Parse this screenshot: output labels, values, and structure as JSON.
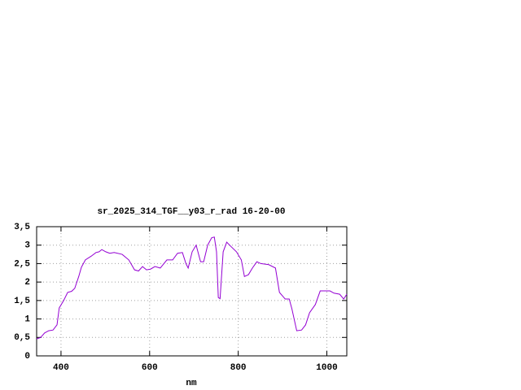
{
  "chart_data": {
    "type": "line",
    "title": "sr_2025_314_TGF__y03_r_rad 16-20-00",
    "x_label": "nm",
    "color": "#9400d3",
    "grid": true,
    "xlim": [
      345,
      1045
    ],
    "ylim": [
      0,
      3.5
    ],
    "xticks": [
      400,
      600,
      800,
      1000
    ],
    "yticks": [
      0,
      {
        "value": 0.5,
        "label": "0,5"
      },
      1,
      {
        "value": 1.5,
        "label": "1,5"
      },
      2,
      {
        "value": 2.5,
        "label": "2,5"
      },
      3,
      {
        "value": 3.5,
        "label": "3,5"
      }
    ],
    "x": [
      345,
      354,
      363,
      372,
      382,
      391,
      396,
      406,
      415,
      424,
      431,
      440,
      446,
      455,
      468,
      479,
      486,
      492,
      501,
      510,
      520,
      538,
      553,
      566,
      575,
      584,
      593,
      602,
      612,
      624,
      639,
      652,
      663,
      674,
      682,
      687,
      696,
      705,
      715,
      722,
      731,
      740,
      746,
      751,
      755,
      759,
      766,
      774,
      783,
      796,
      807,
      814,
      823,
      832,
      842,
      851,
      869,
      884,
      893,
      906,
      915,
      921,
      932,
      943,
      952,
      961,
      974,
      985,
      998,
      1007,
      1016,
      1029,
      1038,
      1045
    ],
    "values": [
      0.46,
      0.5,
      0.62,
      0.68,
      0.7,
      0.84,
      1.3,
      1.5,
      1.72,
      1.75,
      1.83,
      2.15,
      2.4,
      2.6,
      2.7,
      2.8,
      2.82,
      2.88,
      2.82,
      2.78,
      2.8,
      2.75,
      2.6,
      2.33,
      2.3,
      2.42,
      2.33,
      2.35,
      2.42,
      2.38,
      2.6,
      2.6,
      2.78,
      2.8,
      2.5,
      2.38,
      2.82,
      3.0,
      2.55,
      2.55,
      3.0,
      3.2,
      3.22,
      2.82,
      1.58,
      1.55,
      2.82,
      3.08,
      2.97,
      2.82,
      2.6,
      2.15,
      2.2,
      2.38,
      2.55,
      2.5,
      2.47,
      2.38,
      1.72,
      1.54,
      1.54,
      1.28,
      0.68,
      0.7,
      0.84,
      1.17,
      1.39,
      1.76,
      1.76,
      1.76,
      1.7,
      1.67,
      1.54,
      1.67
    ]
  }
}
